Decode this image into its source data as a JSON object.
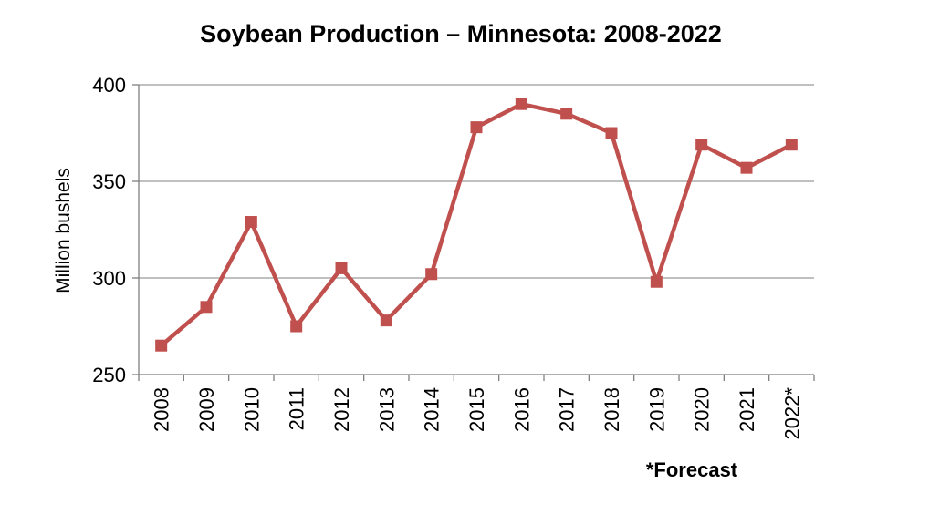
{
  "chart_data": {
    "type": "line",
    "title": "Soybean Production – Minnesota: 2008-2022",
    "xlabel": "",
    "ylabel": "Million bushels",
    "ylim": [
      250,
      400
    ],
    "yticks": [
      250,
      300,
      350,
      400
    ],
    "categories": [
      "2008",
      "2009",
      "2010",
      "2011",
      "2012",
      "2013",
      "2014",
      "2015",
      "2016",
      "2017",
      "2018",
      "2019",
      "2020",
      "2021",
      "2022*"
    ],
    "series": [
      {
        "name": "Soybean Production",
        "color": "#c0504d",
        "values": [
          265,
          285,
          329,
          275,
          305,
          278,
          302,
          378,
          390,
          385,
          375,
          298,
          369,
          357,
          369
        ]
      }
    ],
    "grid": true,
    "annotation": "*Forecast"
  }
}
